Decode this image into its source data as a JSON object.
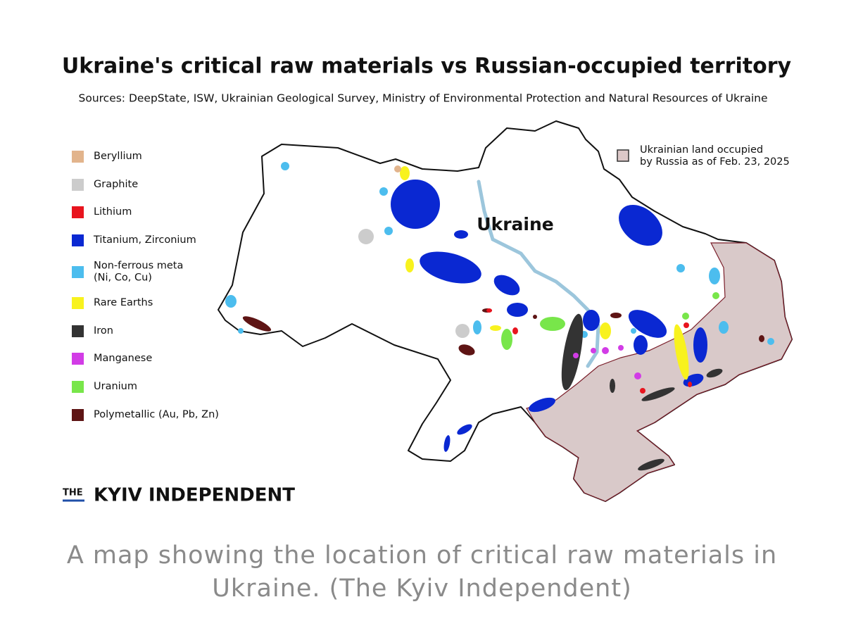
{
  "title": "Ukraine's critical raw materials vs Russian-occupied territory",
  "sources": "Sources: DeepState, ISW, Ukrainian Geological Survey, Ministry of Environmental Protection and Natural Resources of Ukraine",
  "legend": [
    {
      "label": [
        "Beryllium"
      ],
      "color": "#e2b48c"
    },
    {
      "label": [
        "Graphite"
      ],
      "color": "#cccccc"
    },
    {
      "label": [
        "Lithium"
      ],
      "color": "#e8141e"
    },
    {
      "label": [
        "Titanium, Zirconium"
      ],
      "color": "#0a28d2"
    },
    {
      "label": [
        "Non-ferrous meta",
        "(Ni, Co, Cu)"
      ],
      "color": "#4cbdee"
    },
    {
      "label": [
        "Rare Earths"
      ],
      "color": "#f8f21e"
    },
    {
      "label": [
        "Iron"
      ],
      "color": "#333333"
    },
    {
      "label": [
        "Manganese"
      ],
      "color": "#d23ce6"
    },
    {
      "label": [
        "Uranium"
      ],
      "color": "#78e64a"
    },
    {
      "label": [
        "Polymetallic (Au, Pb, Zn)"
      ],
      "color": "#5e1414"
    }
  ],
  "occupied_legend": {
    "lines": [
      "Ukrainian land occupied",
      "by Russia as of Feb. 23, 2025"
    ],
    "color": "#dcc8c8"
  },
  "map_label": "Ukraine",
  "logo": {
    "prefix": "THE",
    "name": "KYIV INDEPENDENT"
  },
  "caption": "A map showing the location of critical raw materials in Ukraine. (The Kyiv Independent)"
}
